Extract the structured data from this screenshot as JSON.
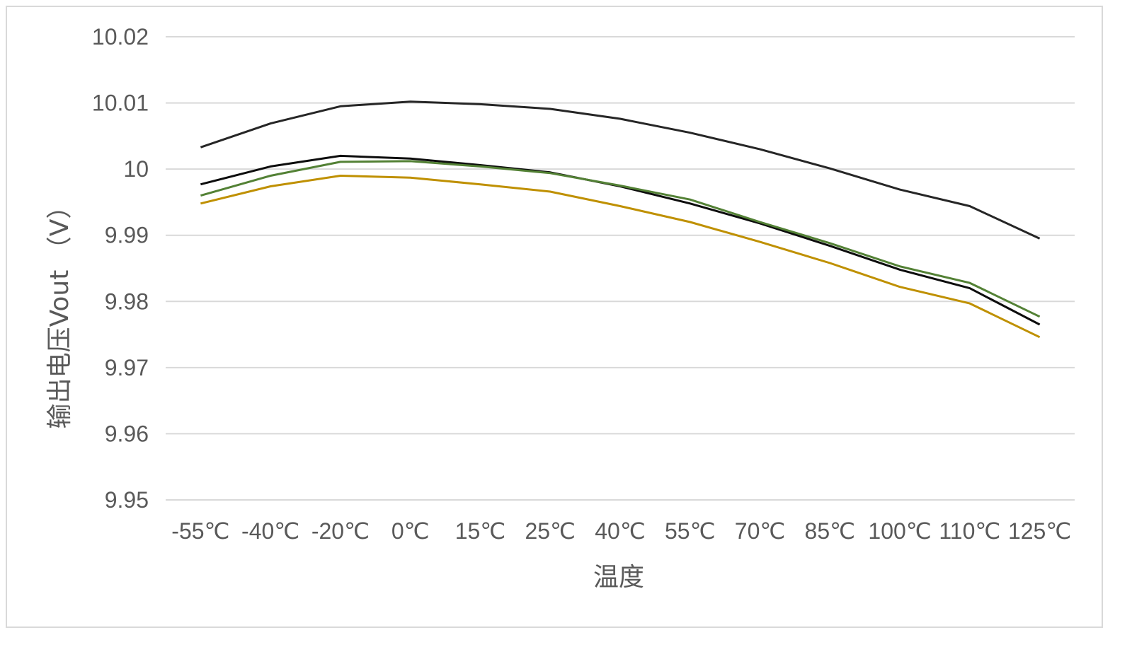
{
  "chart_data": {
    "type": "line",
    "title": "",
    "xlabel": "温度",
    "ylabel": "输出电压Vout （V）",
    "ylim": [
      9.95,
      10.02
    ],
    "ytick_labels": [
      "10.02",
      "10.01",
      "10",
      "9.99",
      "9.98",
      "9.97",
      "9.96",
      "9.95"
    ],
    "grid": true,
    "legend": "none",
    "categories": [
      "-55℃",
      "-40℃",
      "-20℃",
      "0℃",
      "15℃",
      "25℃",
      "40℃",
      "55℃",
      "70℃",
      "85℃",
      "100℃",
      "110℃",
      "125℃"
    ],
    "series": [
      {
        "color": "#262626",
        "values": [
          10.0033,
          10.0069,
          10.0095,
          10.0102,
          10.0098,
          10.0091,
          10.0076,
          10.0055,
          10.003,
          10.0001,
          9.9969,
          9.9944,
          9.9895
        ]
      },
      {
        "color": "#0d0d0d",
        "values": [
          9.9977,
          10.0004,
          10.002,
          10.0016,
          10.0006,
          9.9995,
          9.9974,
          9.9948,
          9.9918,
          9.9884,
          9.9848,
          9.982,
          9.9765
        ]
      },
      {
        "color": "#538135",
        "values": [
          9.996,
          9.999,
          10.0011,
          10.0012,
          10.0004,
          9.9994,
          9.9975,
          9.9954,
          9.992,
          9.9888,
          9.9853,
          9.9828,
          9.9777
        ]
      },
      {
        "color": "#bf9000",
        "values": [
          9.9948,
          9.9974,
          9.999,
          9.9987,
          9.9977,
          9.9966,
          9.9944,
          9.992,
          9.989,
          9.9858,
          9.9822,
          9.9797,
          9.9746
        ]
      }
    ]
  }
}
